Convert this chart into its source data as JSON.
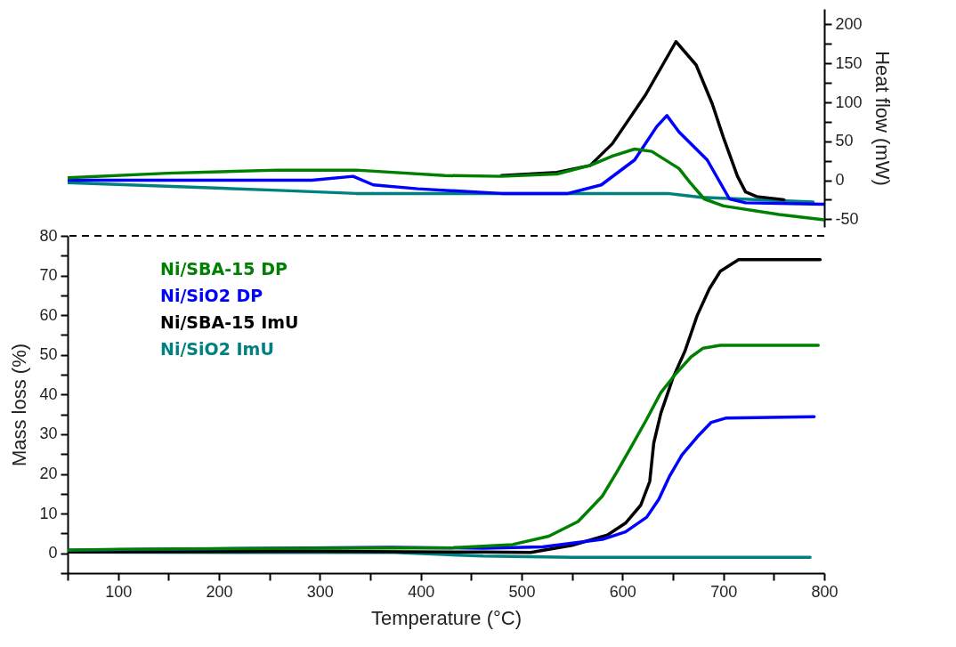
{
  "chart_data": [
    {
      "type": "line",
      "y2label": "Heat flow (mW)",
      "xlim": [
        50,
        800
      ],
      "y2lim": [
        -60,
        220
      ],
      "y2ticks": [
        -50,
        {
          "value": -25,
          "label": null
        },
        0,
        {
          "value": 25,
          "label": null
        },
        50,
        {
          "value": 75,
          "label": null
        },
        100,
        {
          "value": 125,
          "label": null
        },
        150,
        {
          "value": 175,
          "label": null
        },
        200
      ],
      "tick_labels": "y2",
      "series": [
        {
          "color": "#008000",
          "axis": "y2",
          "x": [
            50,
            149,
            259,
            336,
            424,
            480,
            535,
            568,
            590,
            612,
            629,
            656,
            667,
            681,
            700,
            755,
            800
          ],
          "values": [
            3,
            9,
            13,
            13,
            6,
            5,
            8,
            19,
            31,
            40,
            37,
            15,
            -3,
            -24,
            -33,
            -44,
            -51
          ]
        },
        {
          "color": "#0000ff",
          "axis": "y2",
          "x": [
            50,
            204,
            292,
            333,
            353,
            397,
            480,
            546,
            579,
            612,
            634,
            644,
            656,
            684,
            706,
            722,
            800
          ],
          "values": [
            0,
            0,
            0,
            5,
            -6,
            -11,
            -17,
            -17,
            -6,
            26,
            69,
            83,
            62,
            26,
            -24,
            -29,
            -31
          ]
        },
        {
          "color": "#000000",
          "axis": "y2",
          "x": [
            480,
            535,
            568,
            590,
            623,
            653,
            673,
            689,
            700,
            714,
            722,
            733,
            760
          ],
          "values": [
            6,
            10,
            19,
            47,
            110,
            178,
            148,
            98,
            55,
            5,
            -15,
            -21,
            -25
          ]
        },
        {
          "color": "#008080",
          "axis": "y2",
          "x": [
            50,
            259,
            336,
            645,
            678,
            789
          ],
          "values": [
            -3,
            -13,
            -17,
            -17,
            -22,
            -28
          ]
        }
      ]
    },
    {
      "type": "line",
      "xlabel": "Temperature (°C)",
      "ylabel": "Mass loss (%)",
      "xlim": [
        50,
        800
      ],
      "ylim": [
        -5,
        80
      ],
      "xticks": [
        {
          "value": 50,
          "label": null
        },
        100,
        {
          "value": 150,
          "label": null
        },
        200,
        {
          "value": 250,
          "label": null
        },
        300,
        {
          "value": 350,
          "label": null
        },
        400,
        {
          "value": 450,
          "label": null
        },
        500,
        {
          "value": 550,
          "label": null
        },
        600,
        {
          "value": 650,
          "label": null
        },
        700,
        {
          "value": 750,
          "label": null
        },
        800
      ],
      "yticks": [
        {
          "value": -5,
          "label": null
        },
        0,
        {
          "value": 5,
          "label": null
        },
        10,
        {
          "value": 15,
          "label": null
        },
        20,
        {
          "value": 25,
          "label": null
        },
        30,
        {
          "value": 35,
          "label": null
        },
        40,
        {
          "value": 45,
          "label": null
        },
        50,
        {
          "value": 55,
          "label": null
        },
        60,
        {
          "value": 65,
          "label": null
        },
        70,
        {
          "value": 75,
          "label": null
        },
        80
      ],
      "legend": "top left",
      "ref_lines": [
        {
          "axis": "y",
          "value": 80,
          "color": "#000000",
          "line_style": "dashed"
        }
      ],
      "series": [
        {
          "name": "Ni/SBA-15 DP",
          "color": "#008000",
          "x": [
            50,
            100,
            300,
            432,
            491,
            527,
            556,
            580,
            594,
            609,
            624,
            638,
            653,
            668,
            680,
            697,
            794
          ],
          "values": [
            0.8,
            1.0,
            1.3,
            1.4,
            2.2,
            4.3,
            8,
            14.4,
            20.3,
            27,
            33.8,
            40.5,
            45.3,
            49.5,
            51.7,
            52.4,
            52.4
          ]
        },
        {
          "name": "Ni/SiO2 DP",
          "color": "#0000ff",
          "x": [
            50,
            370,
            462,
            521,
            580,
            603,
            624,
            636,
            647,
            659,
            674,
            688,
            703,
            790
          ],
          "values": [
            0.8,
            1.5,
            1.3,
            1.6,
            3.5,
            5.4,
            9.1,
            13.6,
            19.6,
            24.8,
            29.3,
            33,
            34.1,
            34.4
          ]
        },
        {
          "name": "Ni/SBA-15 ImU",
          "color": "#000000",
          "x": [
            50,
            300,
            462,
            509,
            550,
            585,
            603,
            618,
            627,
            631,
            638,
            650,
            662,
            674,
            686,
            697,
            715,
            796
          ],
          "values": [
            0.3,
            0.5,
            0.3,
            0.2,
            2.0,
            4.6,
            7.6,
            12.1,
            18.1,
            27.8,
            35.3,
            44.2,
            51,
            59.9,
            66.6,
            71.1,
            74,
            74
          ]
        },
        {
          "name": "Ni/SiO2 ImU",
          "color": "#008080",
          "x": [
            50,
            300,
            374,
            462,
            550,
            786
          ],
          "values": [
            0.3,
            0.2,
            0.2,
            -0.7,
            -1.0,
            -1.0
          ]
        }
      ]
    }
  ]
}
